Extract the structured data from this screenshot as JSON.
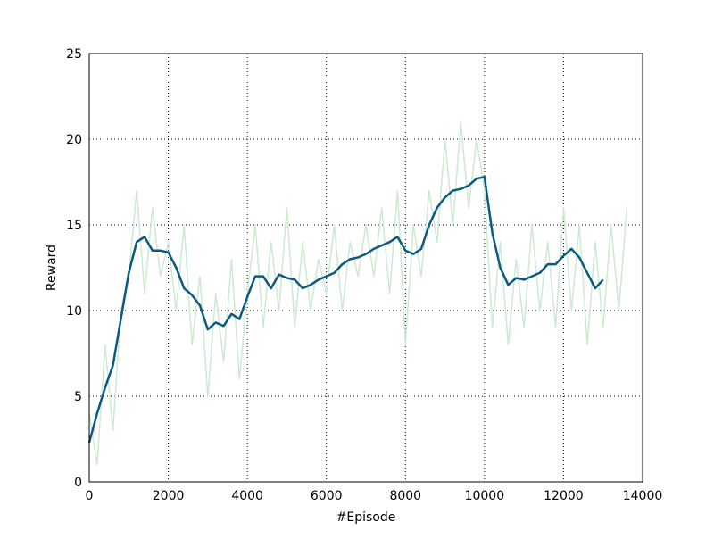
{
  "chart_data": {
    "type": "line",
    "x_label": "#Episode",
    "y_label": "Reward",
    "x": [
      0,
      200,
      400,
      600,
      800,
      1000,
      1200,
      1400,
      1600,
      1800,
      2000,
      2200,
      2400,
      2600,
      2800,
      3000,
      3200,
      3400,
      3600,
      3800,
      4000,
      4200,
      4400,
      4600,
      4800,
      5000,
      5200,
      5400,
      5600,
      5800,
      6000,
      6200,
      6400,
      6600,
      6800,
      7000,
      7200,
      7400,
      7600,
      7800,
      8000,
      8200,
      8400,
      8600,
      8800,
      9000,
      9200,
      9400,
      9600,
      9800,
      10000,
      10200,
      10400,
      10600,
      10800,
      11000,
      11200,
      11400,
      11600,
      11800,
      12000,
      12200,
      12400,
      12600,
      12800,
      13000,
      13200,
      13400,
      13600
    ],
    "series": [
      {
        "color": "#cde9d1",
        "width": 1.5,
        "values": [
          4,
          1,
          8,
          3,
          10,
          12,
          17,
          11,
          16,
          12,
          14,
          10,
          15,
          8,
          12,
          5,
          11,
          7,
          13,
          6,
          11,
          15,
          9,
          14,
          10,
          16,
          9,
          14,
          10,
          13,
          11,
          15,
          10,
          14,
          12,
          15,
          12,
          16,
          11,
          17,
          8,
          15,
          12,
          17,
          14,
          20,
          15,
          21,
          16,
          20,
          17,
          9,
          14,
          8,
          13,
          9,
          15,
          10,
          14,
          9,
          16,
          10,
          15,
          8,
          14,
          9,
          15,
          10,
          16
        ]
      },
      {
        "color": "#0b5a80",
        "width": 2.5,
        "values": [
          2.3,
          4,
          5.5,
          6.8,
          9.5,
          12.2,
          14,
          14.3,
          13.5,
          13.5,
          13.4,
          12.5,
          11.3,
          10.9,
          10.3,
          8.9,
          9.3,
          9.1,
          9.8,
          9.5,
          10.8,
          12,
          12,
          11.3,
          12.1,
          11.9,
          11.8,
          11.3,
          11.5,
          11.8,
          12,
          12.2,
          12.7,
          13,
          13.1,
          13.3,
          13.6,
          13.8,
          14,
          14.3,
          13.5,
          13.3,
          13.6,
          15,
          16,
          16.6,
          17,
          17.1,
          17.3,
          17.7,
          17.8,
          14.5,
          12.5,
          11.5,
          11.9,
          11.8,
          12,
          12.2,
          12.7,
          12.7,
          13.2,
          13.6,
          13.1,
          12.2,
          11.3,
          11.8,
          null,
          null,
          null
        ]
      }
    ],
    "xlim": [
      0,
      14000
    ],
    "xticks": [
      0,
      2000,
      4000,
      6000,
      8000,
      10000,
      12000,
      14000
    ],
    "ylim": [
      0,
      25
    ],
    "yticks": [
      0,
      5,
      10,
      15,
      20,
      25
    ],
    "grid": true
  }
}
